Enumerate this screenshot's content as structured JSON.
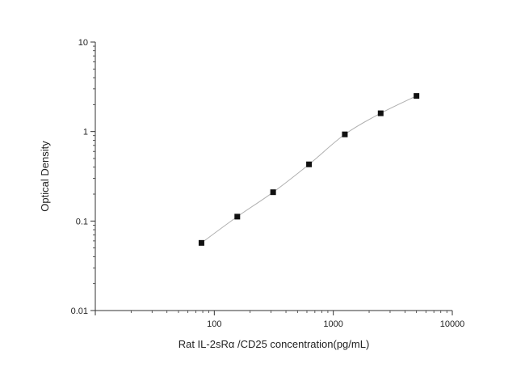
{
  "chart_data": {
    "type": "scatter",
    "title": "",
    "xlabel": "Rat IL-2sRα /CD25 concentration(pg/mL)",
    "ylabel": "Optical Density",
    "x_scale": "log",
    "y_scale": "log",
    "xlim": [
      10,
      10000
    ],
    "ylim": [
      0.01,
      10
    ],
    "x_ticks": [
      {
        "value": 100,
        "label": "100"
      },
      {
        "value": 1000,
        "label": "1000"
      },
      {
        "value": 10000,
        "label": "10000"
      }
    ],
    "y_ticks": [
      {
        "value": 0.01,
        "label": "0.01"
      },
      {
        "value": 0.1,
        "label": "0.1"
      },
      {
        "value": 1,
        "label": "1"
      },
      {
        "value": 10,
        "label": "10"
      }
    ],
    "grid": false,
    "series": [
      {
        "x": [
          78,
          156,
          312,
          625,
          1250,
          2500,
          5000
        ],
        "y": [
          0.057,
          0.112,
          0.21,
          0.43,
          0.93,
          1.6,
          2.5
        ],
        "marker": "square",
        "fit_line": true,
        "color": "#111111",
        "line_color": "#b0b0b0"
      }
    ]
  }
}
